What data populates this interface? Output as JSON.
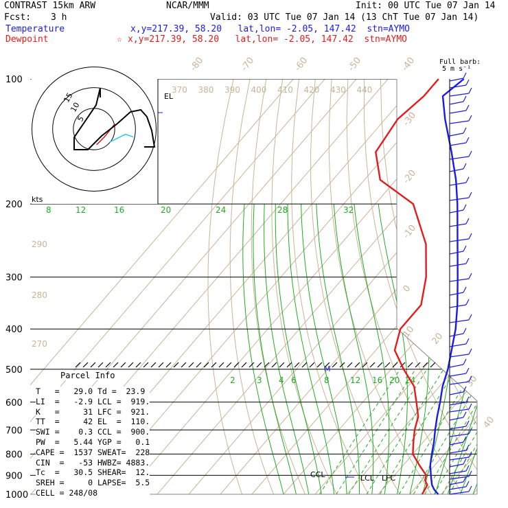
{
  "header": {
    "model": "CONTRAST 15km ARW",
    "org": "NCAR/MMM",
    "init": "Init: 00 UTC Tue 07 Jan 14",
    "fcst_label": "Fcst:",
    "fcst_value": "3 h",
    "valid": "Valid: 03 UTC Tue 07 Jan 14 (13 ChT Tue 07 Jan 14)",
    "temp_label": "Temperature",
    "temp_loc": "x,y=217.39, 58.20   lat,lon= -2.05, 147.42  stn=AYMO",
    "dew_label": "Dewpoint",
    "dew_loc": "x,y=217.39, 58.20   lat,lon= -2.05, 147.42  stn=AYMO",
    "dew_star": "☆"
  },
  "barb_title": "Full barb:",
  "barb_unit": "5 m s⁻¹",
  "hodograph": {
    "unit": "kts",
    "ring_labels": [
      "5",
      "10",
      "15"
    ]
  },
  "colors": {
    "temperature": "#1a1ae6",
    "dewpoint": "#e61a1a",
    "isotherm": "#c8b496",
    "mixing_ratio": "#22aa22",
    "barb": "#1a1ae6"
  },
  "parcel": {
    "title": "Parcel Info",
    "lines": [
      "T   =   29.0 Td =  23.9",
      "LI  =   -2.9 LCL =  919.",
      "K   =     31 LFC =  921.",
      "TT  =     42 EL  =  110.",
      "SWI =    0.3 CCL =  900.",
      "PW  =   5.44 YGP =   0.1",
      "CAPE =  1537 SWEAT=  228",
      "CIN  =   -53 HWBZ= 4883.",
      "Tc  =   30.5 SHEAR=  12.",
      "SREH =     0 LAPSE=  5.5",
      "CELL = 248/08"
    ]
  },
  "chart_data": {
    "type": "line",
    "title": "",
    "ylabel": "",
    "xlabel": "",
    "pressure_levels": [
      "100",
      "200",
      "300",
      "400",
      "500",
      "600",
      "700",
      "800",
      "900",
      "1000"
    ],
    "isotherm_labels": [
      "-80",
      "-70",
      "-60",
      "-50",
      "-40",
      "-30",
      "-20",
      "-10",
      "0",
      "10",
      "20",
      "30",
      "40"
    ],
    "theta_labels_top": [
      "370",
      "380",
      "390",
      "400",
      "410",
      "420",
      "430",
      "440"
    ],
    "theta_labels_left": [
      "290",
      "280",
      "270"
    ],
    "mixing_ratio_labels_top": [
      "8",
      "12",
      "16",
      "20",
      "24",
      "28",
      "32"
    ],
    "mixing_ratio_labels_low": [
      "2",
      "3",
      "4",
      "6",
      "8",
      "12",
      "16",
      "20",
      "24"
    ],
    "level_labels": [
      {
        "text": "EL",
        "pressure": 110
      },
      {
        "text": "CCL",
        "pressure": 900
      },
      {
        "text": "LCL",
        "pressure": 919
      },
      {
        "text": "LFC",
        "pressure": 921
      },
      {
        "text": "M",
        "pressure": 500
      }
    ],
    "series": [
      {
        "name": "Temperature",
        "points": [
          [
            1000,
            29.0
          ],
          [
            975,
            26.5
          ],
          [
            950,
            24.5
          ],
          [
            925,
            23.0
          ],
          [
            900,
            21.5
          ],
          [
            850,
            18.5
          ],
          [
            800,
            16.0
          ],
          [
            750,
            13.5
          ],
          [
            700,
            10.5
          ],
          [
            650,
            7.5
          ],
          [
            600,
            4.5
          ],
          [
            550,
            1.0
          ],
          [
            500,
            -2.0
          ],
          [
            450,
            -6.0
          ],
          [
            400,
            -10.5
          ],
          [
            350,
            -16.5
          ],
          [
            300,
            -24.0
          ],
          [
            250,
            -33.0
          ],
          [
            200,
            -44.0
          ],
          [
            175,
            -51.0
          ],
          [
            150,
            -60.0
          ],
          [
            125,
            -71.0
          ],
          [
            110,
            -78.0
          ],
          [
            100,
            -76.0
          ]
        ]
      },
      {
        "name": "Dewpoint",
        "points": [
          [
            1000,
            23.9
          ],
          [
            975,
            23.5
          ],
          [
            950,
            23.0
          ],
          [
            925,
            21.0
          ],
          [
            900,
            20.0
          ],
          [
            850,
            15.0
          ],
          [
            800,
            10.0
          ],
          [
            750,
            7.0
          ],
          [
            700,
            4.0
          ],
          [
            650,
            1.5
          ],
          [
            600,
            -3.0
          ],
          [
            550,
            -8.0
          ],
          [
            500,
            -16.0
          ],
          [
            450,
            -24.0
          ],
          [
            400,
            -28.0
          ],
          [
            350,
            -28.0
          ],
          [
            300,
            -34.0
          ],
          [
            250,
            -43.0
          ],
          [
            200,
            -58.0
          ],
          [
            175,
            -75.0
          ],
          [
            150,
            -84.0
          ],
          [
            125,
            -86.0
          ],
          [
            110,
            -84.0
          ],
          [
            100,
            -84.0
          ]
        ]
      }
    ],
    "hodograph_path": [
      [
        -3,
        0.5
      ],
      [
        -1.5,
        2
      ],
      [
        1,
        4
      ],
      [
        3,
        6
      ],
      [
        4,
        7
      ],
      [
        3.5,
        10
      ],
      [
        0.5,
        11
      ],
      [
        -2.5,
        11
      ],
      [
        -5,
        12
      ],
      [
        -6,
        11
      ],
      [
        -4.5,
        9
      ],
      [
        -3,
        14
      ],
      [
        -3.5,
        16
      ]
    ]
  }
}
